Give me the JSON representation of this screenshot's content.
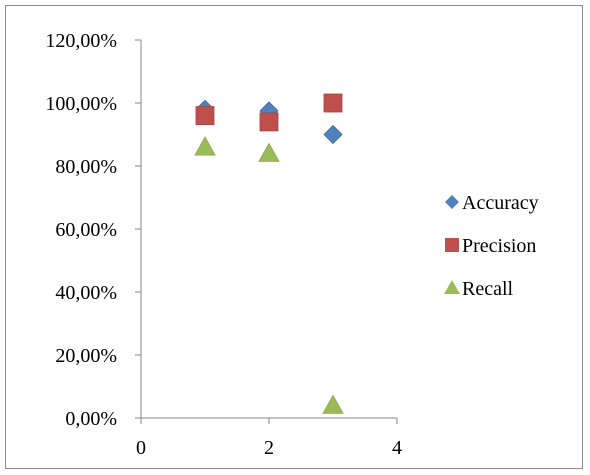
{
  "chart_data": {
    "type": "scatter",
    "title": "",
    "xlabel": "",
    "ylabel": "",
    "xlim": [
      0,
      4
    ],
    "ylim": [
      0,
      120
    ],
    "x_ticks": [
      0,
      2,
      4
    ],
    "x_tick_labels": [
      "0",
      "2",
      "4"
    ],
    "y_ticks": [
      0,
      20,
      40,
      60,
      80,
      100,
      120
    ],
    "y_tick_labels": [
      "0,00%",
      "20,00%",
      "40,00%",
      "60,00%",
      "80,00%",
      "100,00%",
      "120,00%"
    ],
    "grid": false,
    "legend_position": "right",
    "series": [
      {
        "name": "Accuracy",
        "marker": "diamond",
        "color": "#4F81BD",
        "points": [
          {
            "x": 1,
            "y": 98
          },
          {
            "x": 2,
            "y": 97.5
          },
          {
            "x": 3,
            "y": 90
          }
        ]
      },
      {
        "name": "Precision",
        "marker": "square",
        "color": "#C0504D",
        "points": [
          {
            "x": 1,
            "y": 96
          },
          {
            "x": 2,
            "y": 94
          },
          {
            "x": 3,
            "y": 100
          }
        ]
      },
      {
        "name": "Recall",
        "marker": "triangle",
        "color": "#9BBB59",
        "points": [
          {
            "x": 1,
            "y": 86
          },
          {
            "x": 2,
            "y": 84
          },
          {
            "x": 3,
            "y": 4
          }
        ]
      }
    ]
  }
}
